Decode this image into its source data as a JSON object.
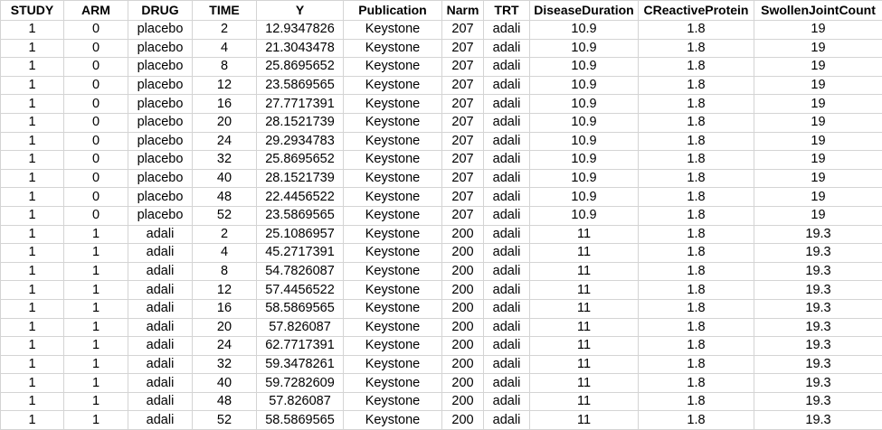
{
  "columns": [
    "STUDY",
    "ARM",
    "DRUG",
    "TIME",
    "Y",
    "Publication",
    "Narm",
    "TRT",
    "DiseaseDuration",
    "CReactiveProtein",
    "SwollenJointCount"
  ],
  "rows": [
    [
      "1",
      "0",
      "placebo",
      "2",
      "12.9347826",
      "Keystone",
      "207",
      "adali",
      "10.9",
      "1.8",
      "19"
    ],
    [
      "1",
      "0",
      "placebo",
      "4",
      "21.3043478",
      "Keystone",
      "207",
      "adali",
      "10.9",
      "1.8",
      "19"
    ],
    [
      "1",
      "0",
      "placebo",
      "8",
      "25.8695652",
      "Keystone",
      "207",
      "adali",
      "10.9",
      "1.8",
      "19"
    ],
    [
      "1",
      "0",
      "placebo",
      "12",
      "23.5869565",
      "Keystone",
      "207",
      "adali",
      "10.9",
      "1.8",
      "19"
    ],
    [
      "1",
      "0",
      "placebo",
      "16",
      "27.7717391",
      "Keystone",
      "207",
      "adali",
      "10.9",
      "1.8",
      "19"
    ],
    [
      "1",
      "0",
      "placebo",
      "20",
      "28.1521739",
      "Keystone",
      "207",
      "adali",
      "10.9",
      "1.8",
      "19"
    ],
    [
      "1",
      "0",
      "placebo",
      "24",
      "29.2934783",
      "Keystone",
      "207",
      "adali",
      "10.9",
      "1.8",
      "19"
    ],
    [
      "1",
      "0",
      "placebo",
      "32",
      "25.8695652",
      "Keystone",
      "207",
      "adali",
      "10.9",
      "1.8",
      "19"
    ],
    [
      "1",
      "0",
      "placebo",
      "40",
      "28.1521739",
      "Keystone",
      "207",
      "adali",
      "10.9",
      "1.8",
      "19"
    ],
    [
      "1",
      "0",
      "placebo",
      "48",
      "22.4456522",
      "Keystone",
      "207",
      "adali",
      "10.9",
      "1.8",
      "19"
    ],
    [
      "1",
      "0",
      "placebo",
      "52",
      "23.5869565",
      "Keystone",
      "207",
      "adali",
      "10.9",
      "1.8",
      "19"
    ],
    [
      "1",
      "1",
      "adali",
      "2",
      "25.1086957",
      "Keystone",
      "200",
      "adali",
      "11",
      "1.8",
      "19.3"
    ],
    [
      "1",
      "1",
      "adali",
      "4",
      "45.2717391",
      "Keystone",
      "200",
      "adali",
      "11",
      "1.8",
      "19.3"
    ],
    [
      "1",
      "1",
      "adali",
      "8",
      "54.7826087",
      "Keystone",
      "200",
      "adali",
      "11",
      "1.8",
      "19.3"
    ],
    [
      "1",
      "1",
      "adali",
      "12",
      "57.4456522",
      "Keystone",
      "200",
      "adali",
      "11",
      "1.8",
      "19.3"
    ],
    [
      "1",
      "1",
      "adali",
      "16",
      "58.5869565",
      "Keystone",
      "200",
      "adali",
      "11",
      "1.8",
      "19.3"
    ],
    [
      "1",
      "1",
      "adali",
      "20",
      "57.826087",
      "Keystone",
      "200",
      "adali",
      "11",
      "1.8",
      "19.3"
    ],
    [
      "1",
      "1",
      "adali",
      "24",
      "62.7717391",
      "Keystone",
      "200",
      "adali",
      "11",
      "1.8",
      "19.3"
    ],
    [
      "1",
      "1",
      "adali",
      "32",
      "59.3478261",
      "Keystone",
      "200",
      "adali",
      "11",
      "1.8",
      "19.3"
    ],
    [
      "1",
      "1",
      "adali",
      "40",
      "59.7282609",
      "Keystone",
      "200",
      "adali",
      "11",
      "1.8",
      "19.3"
    ],
    [
      "1",
      "1",
      "adali",
      "48",
      "57.826087",
      "Keystone",
      "200",
      "adali",
      "11",
      "1.8",
      "19.3"
    ],
    [
      "1",
      "1",
      "adali",
      "52",
      "58.5869565",
      "Keystone",
      "200",
      "adali",
      "11",
      "1.8",
      "19.3"
    ]
  ]
}
